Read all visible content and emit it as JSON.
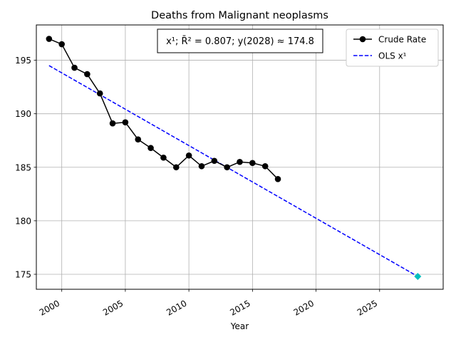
{
  "chart_data": {
    "type": "line",
    "title": "Deaths from Malignant neoplasms",
    "xlabel": "Year",
    "ylabel": "",
    "xlim": [
      1998.0,
      2030.0
    ],
    "ylim": [
      173.6,
      198.3
    ],
    "xticks": [
      2000,
      2005,
      2010,
      2015,
      2020,
      2025
    ],
    "yticks": [
      175,
      180,
      185,
      190,
      195
    ],
    "grid": true,
    "legend_position": "top-right",
    "annotation": "x¹; R̄² = 0.807; y(2028) ≈ 174.8",
    "series": [
      {
        "name": "Crude Rate",
        "style": "solid line with circle markers",
        "color": "#000000",
        "x": [
          1999,
          2000,
          2001,
          2002,
          2003,
          2004,
          2005,
          2006,
          2007,
          2008,
          2009,
          2010,
          2011,
          2012,
          2013,
          2014,
          2015,
          2016,
          2017
        ],
        "y": [
          197.0,
          196.5,
          194.3,
          193.7,
          191.9,
          189.1,
          189.2,
          187.6,
          186.8,
          185.9,
          185.0,
          186.1,
          185.1,
          185.6,
          185.0,
          185.5,
          185.4,
          185.1,
          183.9
        ]
      },
      {
        "name": "OLS x¹",
        "style": "dashed line",
        "color": "#0000ff",
        "x": [
          1999,
          2028
        ],
        "y": [
          194.5,
          174.8
        ]
      }
    ],
    "forecast_point": {
      "x": 2028,
      "y": 174.8,
      "color": "#00bfbf",
      "marker": "diamond"
    }
  }
}
